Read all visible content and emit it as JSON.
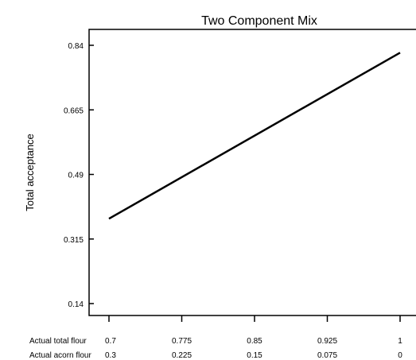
{
  "chart_data": {
    "type": "line",
    "title": "Two Component Mix",
    "ylabel": "Total acceptance",
    "ylim": [
      0.14,
      0.84
    ],
    "yticks": [
      "0.14",
      "0.315",
      "0.49",
      "0.665",
      "0.84"
    ],
    "xlim": [
      0.7,
      1
    ],
    "x_rows": [
      {
        "label": "Actual total flour",
        "ticks": [
          "0.7",
          "0.775",
          "0.85",
          "0.925",
          "1"
        ]
      },
      {
        "label": "Actual acorn flour",
        "ticks": [
          "0.3",
          "0.225",
          "0.15",
          "0.075",
          "0"
        ]
      }
    ],
    "series": [
      {
        "x": [
          0.7,
          1.0
        ],
        "y": [
          0.37,
          0.82
        ]
      }
    ],
    "grid": false,
    "colors": {
      "line": "#000000",
      "axis": "#000000"
    }
  }
}
